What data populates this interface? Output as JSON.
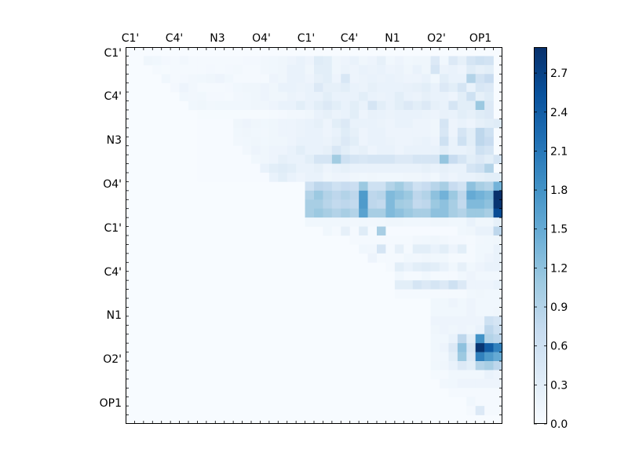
{
  "chart_data": {
    "type": "heatmap",
    "title": "",
    "xlabel": "",
    "ylabel": "",
    "grid": false,
    "colormap": {
      "name": "Blues",
      "low": "#f7fbff",
      "high": "#08306b"
    },
    "grid_size": 42,
    "x_tick_labels": [
      "C1'",
      "C4'",
      "N3",
      "O4'",
      "C1'",
      "C4'",
      "N1",
      "O2'",
      "OP1"
    ],
    "y_tick_labels": [
      "C1'",
      "C4'",
      "N3",
      "O4'",
      "C1'",
      "C4'",
      "N1",
      "O2'",
      "OP1"
    ],
    "colorbar": {
      "range": [
        0.0,
        2.9
      ],
      "ticks": [
        "0.0",
        "0.3",
        "0.6",
        "0.9",
        "1.2",
        "1.5",
        "1.8",
        "2.1",
        "2.4",
        "2.7"
      ],
      "tick_values": [
        0.0,
        0.3,
        0.6,
        0.9,
        1.2,
        1.5,
        1.8,
        2.1,
        2.4,
        2.7
      ]
    },
    "rows": [
      {
        "row": 1,
        "start": 2,
        "values": [
          0.12,
          0.1,
          0.06,
          0.05,
          0.08,
          0.04,
          0.04,
          0.04,
          0.04,
          0.04,
          0.04,
          0.06,
          0.06,
          0.08,
          0.1,
          0.12,
          0.15,
          0.2,
          0.15,
          0.35,
          0.3,
          0.12,
          0.15,
          0.2,
          0.12,
          0.15,
          0.25,
          0.1,
          0.15,
          0.1,
          0.12,
          0.12,
          0.4,
          0.1,
          0.4,
          0.25,
          0.5,
          0.6,
          0.55
        ]
      },
      {
        "row": 2,
        "start": 3,
        "values": [
          0.04,
          0.03,
          0.04,
          0.05,
          0.04,
          0.05,
          0.06,
          0.04,
          0.06,
          0.07,
          0.04,
          0.04,
          0.08,
          0.1,
          0.12,
          0.2,
          0.2,
          0.12,
          0.3,
          0.3,
          0.12,
          0.18,
          0.15,
          0.2,
          0.18,
          0.2,
          0.15,
          0.18,
          0.12,
          0.2,
          0.12,
          0.5,
          0.18,
          0.2,
          0.15,
          0.35,
          0.25,
          0.3
        ]
      },
      {
        "row": 3,
        "start": 4,
        "values": [
          0.1,
          0.05,
          0.06,
          0.08,
          0.1,
          0.12,
          0.15,
          0.1,
          0.05,
          0.05,
          0.04,
          0.05,
          0.15,
          0.12,
          0.2,
          0.2,
          0.15,
          0.25,
          0.3,
          0.15,
          0.45,
          0.15,
          0.18,
          0.2,
          0.18,
          0.2,
          0.18,
          0.15,
          0.15,
          0.2,
          0.1,
          0.3,
          0.2,
          0.2,
          0.9,
          0.55,
          0.7
        ]
      },
      {
        "row": 4,
        "start": 5,
        "values": [
          0.06,
          0.15,
          0.08,
          0.05,
          0.05,
          0.05,
          0.06,
          0.1,
          0.12,
          0.12,
          0.15,
          0.12,
          0.2,
          0.2,
          0.18,
          0.2,
          0.4,
          0.25,
          0.25,
          0.3,
          0.2,
          0.18,
          0.25,
          0.2,
          0.2,
          0.2,
          0.22,
          0.25,
          0.3,
          0.2,
          0.4,
          0.3,
          0.5,
          0.2,
          0.45,
          0.4
        ]
      },
      {
        "row": 5,
        "start": 6,
        "values": [
          0.1,
          0.08,
          0.1,
          0.06,
          0.06,
          0.05,
          0.08,
          0.1,
          0.12,
          0.15,
          0.12,
          0.12,
          0.18,
          0.15,
          0.2,
          0.2,
          0.3,
          0.2,
          0.2,
          0.2,
          0.3,
          0.2,
          0.18,
          0.2,
          0.3,
          0.2,
          0.18,
          0.25,
          0.2,
          0.2,
          0.15,
          0.3,
          0.6,
          0.25,
          0.35
        ]
      },
      {
        "row": 6,
        "start": 7,
        "values": [
          0.1,
          0.12,
          0.08,
          0.1,
          0.1,
          0.1,
          0.1,
          0.12,
          0.12,
          0.15,
          0.2,
          0.2,
          0.3,
          0.2,
          0.3,
          0.4,
          0.3,
          0.2,
          0.3,
          0.2,
          0.5,
          0.3,
          0.2,
          0.3,
          0.4,
          0.3,
          0.4,
          0.25,
          0.2,
          0.5,
          0.3,
          0.3,
          1.1,
          0.4
        ]
      },
      {
        "row": 7,
        "start": 8,
        "values": [
          0.03,
          0.03,
          0.03,
          0.03,
          0.03,
          0.03,
          0.03,
          0.03,
          0.05,
          0.06,
          0.08,
          0.08,
          0.12,
          0.2,
          0.25,
          0.18,
          0.2,
          0.3,
          0.15,
          0.22,
          0.2,
          0.18,
          0.2,
          0.2,
          0.2,
          0.18,
          0.15,
          0.22,
          0.2,
          0.3,
          0.25,
          0.35,
          0.4
        ]
      },
      {
        "row": 8,
        "start": 8,
        "values": [
          0.02,
          0.02,
          0.02,
          0.02,
          0.12,
          0.15,
          0.12,
          0.1,
          0.12,
          0.15,
          0.15,
          0.18,
          0.2,
          0.25,
          0.15,
          0.3,
          0.4,
          0.2,
          0.2,
          0.2,
          0.18,
          0.15,
          0.2,
          0.2,
          0.15,
          0.15,
          0.12,
          0.5,
          0.15,
          0.2,
          0.15,
          0.25,
          0.3,
          0.35
        ]
      },
      {
        "row": 9,
        "start": 8,
        "values": [
          0.02,
          0.02,
          0.02,
          0.02,
          0.1,
          0.12,
          0.1,
          0.08,
          0.12,
          0.15,
          0.15,
          0.18,
          0.2,
          0.2,
          0.15,
          0.2,
          0.35,
          0.25,
          0.15,
          0.2,
          0.2,
          0.15,
          0.15,
          0.15,
          0.15,
          0.15,
          0.12,
          0.45,
          0.15,
          0.5,
          0.3,
          0.8,
          0.6
        ]
      },
      {
        "row": 10,
        "start": 8,
        "values": [
          0.02,
          0.02,
          0.02,
          0.02,
          0.08,
          0.1,
          0.12,
          0.1,
          0.12,
          0.12,
          0.15,
          0.2,
          0.2,
          0.2,
          0.18,
          0.25,
          0.4,
          0.3,
          0.15,
          0.2,
          0.2,
          0.18,
          0.15,
          0.15,
          0.18,
          0.2,
          0.15,
          0.6,
          0.2,
          0.6,
          0.3,
          0.8,
          0.7
        ]
      },
      {
        "row": 11,
        "start": 8,
        "values": [
          0.02,
          0.02,
          0.02,
          0.02,
          0.02,
          0.08,
          0.15,
          0.12,
          0.15,
          0.15,
          0.2,
          0.3,
          0.2,
          0.2,
          0.25,
          0.45,
          0.3,
          0.2,
          0.25,
          0.15,
          0.2,
          0.2,
          0.15,
          0.2,
          0.2,
          0.2,
          0.2,
          0.3,
          0.2,
          0.2,
          0.25,
          0.6,
          0.5
        ]
      },
      {
        "row": 12,
        "start": 8,
        "values": [
          0.02,
          0.02,
          0.02,
          0.02,
          0.02,
          0.02,
          0.1,
          0.12,
          0.15,
          0.25,
          0.2,
          0.2,
          0.3,
          0.5,
          0.5,
          1.05,
          0.6,
          0.5,
          0.45,
          0.5,
          0.5,
          0.5,
          0.4,
          0.4,
          0.5,
          0.5,
          0.5,
          1.15,
          0.7,
          0.5,
          0.3,
          0.4,
          0.3,
          0.5
        ]
      },
      {
        "row": 13,
        "start": 8,
        "values": [
          0.02,
          0.02,
          0.02,
          0.02,
          0.02,
          0.02,
          0.02,
          0.2,
          0.3,
          0.35,
          0.3,
          0.2,
          0.2,
          0.25,
          0.15,
          0.2,
          0.25,
          0.2,
          0.2,
          0.2,
          0.2,
          0.2,
          0.2,
          0.2,
          0.2,
          0.25,
          0.2,
          0.25,
          0.2,
          0.2,
          0.5,
          0.6,
          0.9
        ]
      },
      {
        "row": 14,
        "start": 8,
        "values": [
          0.02,
          0.02,
          0.02,
          0.02,
          0.02,
          0.02,
          0.02,
          0.02,
          0.2,
          0.3,
          0.2,
          0.15,
          0.2,
          0.2,
          0.12,
          0.15,
          0.15,
          0.12,
          0.1,
          0.12,
          0.1,
          0.1,
          0.1,
          0.12,
          0.12,
          0.15,
          0.1,
          0.2,
          0.15,
          0.2,
          0.2,
          0.25,
          0.3,
          0.3
        ]
      },
      {
        "row": 15,
        "start": 20,
        "values": [
          0.6,
          0.8,
          0.75,
          0.6,
          0.7,
          0.65,
          1.1,
          0.6,
          0.6,
          0.9,
          1.05,
          0.85,
          0.6,
          0.7,
          0.85,
          1.0,
          0.7,
          0.55,
          1.2,
          1.0,
          0.9,
          1.4,
          1.5,
          1.3
        ]
      },
      {
        "row": 16,
        "start": 20,
        "values": [
          0.9,
          1.1,
          0.9,
          0.8,
          0.9,
          0.8,
          1.7,
          0.8,
          0.85,
          1.3,
          1.2,
          1.1,
          0.8,
          0.9,
          1.2,
          1.4,
          1.1,
          0.8,
          1.5,
          1.4,
          1.3,
          2.9,
          1.6,
          1.8
        ]
      },
      {
        "row": 17,
        "start": 20,
        "values": [
          1.0,
          1.0,
          0.85,
          0.75,
          0.8,
          0.75,
          1.7,
          0.8,
          0.75,
          1.3,
          1.05,
          1.0,
          0.75,
          0.8,
          1.1,
          1.2,
          1.0,
          0.75,
          1.3,
          1.3,
          1.2,
          2.85,
          1.9,
          1.9
        ]
      },
      {
        "row": 18,
        "start": 20,
        "values": [
          1.0,
          1.1,
          1.0,
          0.9,
          1.0,
          0.9,
          1.6,
          1.0,
          1.0,
          1.3,
          1.2,
          1.1,
          1.0,
          1.0,
          1.2,
          1.2,
          1.0,
          0.9,
          1.1,
          1.1,
          1.0,
          2.6,
          1.6,
          1.8
        ]
      },
      {
        "row": 19,
        "start": 20,
        "values": [
          0.1,
          0.1,
          0.1,
          0.1,
          0.1,
          0.08,
          0.1,
          0.08,
          0.1,
          0.12,
          0.12,
          0.1,
          0.1,
          0.1,
          0.12,
          0.12,
          0.1,
          0.1,
          0.2,
          0.12,
          0.12,
          0.25,
          0.3,
          0.3
        ]
      },
      {
        "row": 20,
        "start": 22,
        "values": [
          0.1,
          0.05,
          0.25,
          0.05,
          0.35,
          0.05,
          1.0,
          0.02,
          0.02,
          0.02,
          0.02,
          0.02,
          0.02,
          0.02,
          0.02,
          0.1,
          0.12,
          0.2,
          0.2,
          0.8,
          0.5,
          2.1,
          1.3,
          1.1
        ]
      },
      {
        "row": 21,
        "start": 25,
        "values": [
          0.05,
          0.05,
          0.05,
          0.05,
          0.05,
          0.05,
          0.05,
          0.08,
          0.1,
          0.12,
          0.08,
          0.06,
          0.06,
          0.05,
          0.08,
          0.1,
          0.12,
          0.1,
          0.08,
          0.3,
          0.08,
          0.1
        ]
      },
      {
        "row": 22,
        "start": 26,
        "values": [
          0.1,
          0.08,
          0.5,
          0.05,
          0.25,
          0.05,
          0.3,
          0.3,
          0.2,
          0.3,
          0.15,
          0.3,
          0.05,
          0.1,
          0.1,
          0.2,
          0.2,
          0.25,
          0.08,
          0.2
        ]
      },
      {
        "row": 23,
        "start": 27,
        "values": [
          0.15,
          0.05,
          0.05,
          0.05,
          0.1,
          0.08,
          0.12,
          0.1,
          0.1,
          0.05,
          0.05,
          0.05,
          0.1,
          0.15,
          0.2,
          0.1,
          0.4,
          0.1,
          0.1
        ]
      },
      {
        "row": 24,
        "start": 29,
        "values": [
          0.05,
          0.3,
          0.2,
          0.3,
          0.35,
          0.3,
          0.2,
          0.1,
          0.25,
          0.1,
          0.15,
          0.2,
          0.2,
          0.1,
          0.15,
          0.2
        ]
      },
      {
        "row": 25,
        "start": 30,
        "values": [
          0.1,
          0.05,
          0.05,
          0.1,
          0.05,
          0.05,
          0.05,
          0.1,
          0.15,
          0.1,
          0.1,
          0.1,
          0.1,
          0.1,
          0.1
        ]
      },
      {
        "row": 26,
        "start": 30,
        "values": [
          0.3,
          0.3,
          0.5,
          0.4,
          0.5,
          0.4,
          0.6,
          0.4,
          0.15,
          0.15,
          0.15,
          0.2,
          0.2,
          0.1,
          0.2
        ]
      },
      {
        "row": 27,
        "start": 30,
        "values": [
          0.05,
          0.05,
          0.05,
          0.05,
          0.05,
          0.05,
          0.05,
          0.05,
          0.1,
          0.12,
          0.1,
          0.1,
          0.1,
          0.05,
          0.15
        ]
      },
      {
        "row": 28,
        "start": 34,
        "values": [
          0.1,
          0.1,
          0.15,
          0.1,
          0.15,
          0.1,
          0.1,
          0.1
        ]
      },
      {
        "row": 29,
        "start": 34,
        "values": [
          0.1,
          0.1,
          0.1,
          0.1,
          0.15,
          0.1,
          0.1,
          0.12
        ]
      },
      {
        "row": 30,
        "start": 34,
        "values": [
          0.15,
          0.15,
          0.15,
          0.15,
          0.15,
          0.15,
          0.6,
          0.5
        ]
      },
      {
        "row": 31,
        "start": 34,
        "values": [
          0.12,
          0.15,
          0.12,
          0.15,
          0.12,
          0.2,
          0.8,
          0.6
        ]
      },
      {
        "row": 32,
        "start": 34,
        "values": [
          0.1,
          0.1,
          0.2,
          0.8,
          0.3,
          1.8,
          0.9,
          0.8
        ]
      },
      {
        "row": 33,
        "start": 34,
        "values": [
          0.1,
          0.15,
          0.4,
          1.2,
          0.5,
          2.85,
          2.4,
          2.0
        ]
      },
      {
        "row": 34,
        "start": 34,
        "values": [
          0.08,
          0.1,
          0.3,
          1.1,
          0.4,
          2.0,
          1.7,
          1.5
        ]
      },
      {
        "row": 35,
        "start": 34,
        "values": [
          0.1,
          0.12,
          0.2,
          0.4,
          0.3,
          0.9,
          1.0,
          0.8
        ]
      },
      {
        "row": 36,
        "start": 34,
        "values": [
          0.05,
          0.05,
          0.1,
          0.1,
          0.1,
          0.1,
          0.2,
          0.15
        ]
      },
      {
        "row": 37,
        "start": 35,
        "values": [
          0.08,
          0.1,
          0.15,
          0.15,
          0.15,
          0.15,
          0.15
        ]
      },
      {
        "row": 38,
        "start": 36,
        "values": [
          0.05,
          0.05,
          0.05,
          0.05,
          0.05,
          0.05
        ]
      },
      {
        "row": 39,
        "start": 38,
        "values": [
          0.1,
          0.05,
          0.05,
          0.05
        ]
      },
      {
        "row": 40,
        "start": 38,
        "values": [
          0.05,
          0.4,
          0.05,
          0.05
        ]
      }
    ]
  }
}
